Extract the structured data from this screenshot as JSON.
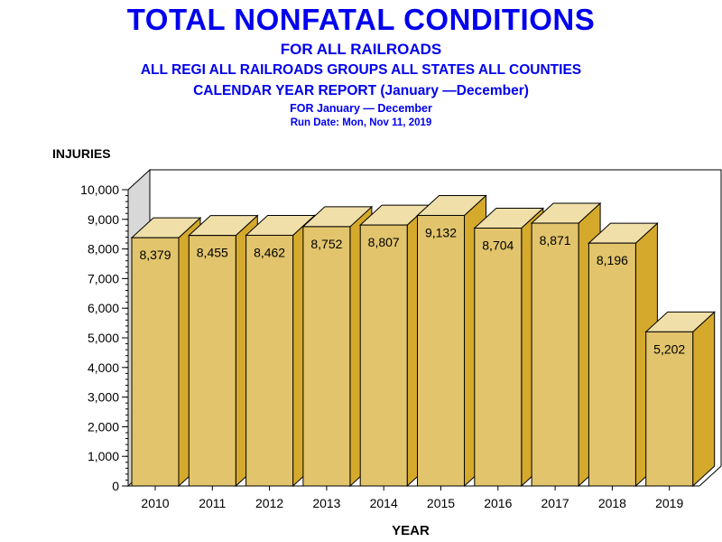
{
  "header": {
    "title": "TOTAL NONFATAL CONDITIONS",
    "line2": "FOR ALL RAILROADS",
    "line3": "ALL REGI ALL RAILROADS GROUPS ALL STATES ALL COUNTIES",
    "line4": "CALENDAR YEAR REPORT (January —December)",
    "line5": "FOR January  —  December",
    "line6": "Run Date:   Mon, Nov 11, 2019"
  },
  "colors": {
    "title": "#0000ee",
    "bar_front": "#e2c46c",
    "bar_top": "#f0dfa8",
    "bar_side": "#d5a92c",
    "back_wall": "#d8d8d8"
  },
  "chart_data": {
    "type": "bar",
    "xlabel": "YEAR",
    "ylabel": "INJURIES",
    "categories": [
      "2010",
      "2011",
      "2012",
      "2013",
      "2014",
      "2015",
      "2016",
      "2017",
      "2018",
      "2019"
    ],
    "values": [
      8379,
      8455,
      8462,
      8752,
      8807,
      9132,
      8704,
      8871,
      8196,
      5202
    ],
    "value_labels": [
      "8,379",
      "8,455",
      "8,462",
      "8,752",
      "8,807",
      "9,132",
      "8,704",
      "8,871",
      "8,196",
      "5,202"
    ],
    "ylim": [
      0,
      10000
    ],
    "yticks": [
      0,
      1000,
      2000,
      3000,
      4000,
      5000,
      6000,
      7000,
      8000,
      9000,
      10000
    ],
    "ytick_labels": [
      "0",
      "1,000",
      "2,000",
      "3,000",
      "4,000",
      "5,000",
      "6,000",
      "7,000",
      "8,000",
      "9,000",
      "10,000"
    ],
    "style": "3d-bar",
    "grid": false,
    "legend": "none"
  }
}
